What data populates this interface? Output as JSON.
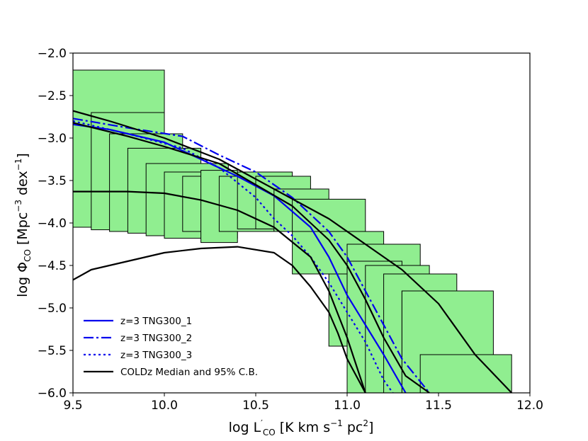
{
  "chart_data": {
    "type": "line",
    "xlabel": "log L'CO [K km s−1 pc2]",
    "ylabel": "log ΦCO [Mpc−3 dex−1]",
    "xlabel_parts": {
      "prefix": "log L",
      "prime": "′",
      "sub": "CO",
      "unit_a": " [K km s",
      "sup1": "−1",
      "unit_b": " pc",
      "sup2": "2",
      "close": "]"
    },
    "ylabel_parts": {
      "prefix": "log Φ",
      "sub": "CO",
      "unit_a": " [Mpc",
      "sup1": "−3",
      "unit_b": " dex",
      "sup2": "−1",
      "close": "]"
    },
    "xlim": [
      9.5,
      12.0
    ],
    "ylim": [
      -6.0,
      -2.0
    ],
    "xticks": [
      "9.5",
      "10.0",
      "10.5",
      "11.0",
      "11.5",
      "12.0"
    ],
    "xtick_values": [
      9.5,
      10.0,
      10.5,
      11.0,
      11.5,
      12.0
    ],
    "yticks": [
      "−2.0",
      "−2.5",
      "−3.0",
      "−3.5",
      "−4.0",
      "−4.5",
      "−5.0",
      "−5.5",
      "−6.0"
    ],
    "ytick_values": [
      -2.0,
      -2.5,
      -3.0,
      -3.5,
      -4.0,
      -4.5,
      -5.0,
      -5.5,
      -6.0
    ],
    "colors": {
      "box_fill": "#90ee90",
      "box_edge": "#000000",
      "sim": "#0000ee",
      "coldz": "#000000"
    },
    "error_boxes": [
      {
        "x0": 9.5,
        "x1": 10.0,
        "y0": -4.05,
        "y1": -2.2
      },
      {
        "x0": 9.6,
        "x1": 10.0,
        "y0": -4.08,
        "y1": -2.7
      },
      {
        "x0": 9.7,
        "x1": 10.1,
        "y0": -4.1,
        "y1": -2.95
      },
      {
        "x0": 9.8,
        "x1": 10.2,
        "y0": -4.12,
        "y1": -3.12
      },
      {
        "x0": 9.9,
        "x1": 10.35,
        "y0": -4.15,
        "y1": -3.3
      },
      {
        "x0": 10.0,
        "x1": 10.4,
        "y0": -4.18,
        "y1": -3.4
      },
      {
        "x0": 10.1,
        "x1": 10.5,
        "y0": -4.1,
        "y1": -3.45
      },
      {
        "x0": 10.2,
        "x1": 10.4,
        "y0": -4.23,
        "y1": -3.38
      },
      {
        "x0": 10.3,
        "x1": 10.6,
        "y0": -4.1,
        "y1": -3.45
      },
      {
        "x0": 10.4,
        "x1": 10.7,
        "y0": -4.07,
        "y1": -3.4
      },
      {
        "x0": 10.5,
        "x1": 10.8,
        "y0": -4.07,
        "y1": -3.45
      },
      {
        "x0": 10.6,
        "x1": 10.9,
        "y0": -4.1,
        "y1": -3.6
      },
      {
        "x0": 10.7,
        "x1": 11.1,
        "y0": -4.1,
        "y1": -3.72
      },
      {
        "x0": 10.9,
        "x1": 11.0,
        "y0": -5.45,
        "y1": -4.1
      },
      {
        "x0": 10.7,
        "x1": 11.2,
        "y0": -4.6,
        "y1": -4.1
      },
      {
        "x0": 11.0,
        "x1": 11.4,
        "y0": -6.0,
        "y1": -4.25
      },
      {
        "x0": 11.0,
        "x1": 11.3,
        "y0": -6.0,
        "y1": -4.45
      },
      {
        "x0": 11.1,
        "x1": 11.45,
        "y0": -6.0,
        "y1": -4.5
      },
      {
        "x0": 11.2,
        "x1": 11.6,
        "y0": -6.0,
        "y1": -4.6
      },
      {
        "x0": 11.3,
        "x1": 11.5,
        "y0": -6.0,
        "y1": -4.8
      },
      {
        "x0": 11.3,
        "x1": 11.8,
        "y0": -6.0,
        "y1": -4.8
      },
      {
        "x0": 11.4,
        "x1": 11.9,
        "y0": -6.0,
        "y1": -5.55
      }
    ],
    "series": [
      {
        "name": "z=3 TNG300_1",
        "style": "solid",
        "color": "#0000ee",
        "x": [
          9.5,
          9.7,
          10.0,
          10.2,
          10.4,
          10.6,
          10.8,
          10.9,
          11.0,
          11.1,
          11.2,
          11.32
        ],
        "y": [
          -2.84,
          -2.9,
          -3.05,
          -3.25,
          -3.45,
          -3.68,
          -4.05,
          -4.4,
          -4.85,
          -5.2,
          -5.55,
          -6.0
        ]
      },
      {
        "name": "z=3 TNG300_2",
        "style": "dashdot",
        "color": "#0000ee",
        "x": [
          9.5,
          9.8,
          10.1,
          10.3,
          10.5,
          10.7,
          10.9,
          11.0,
          11.1,
          11.2,
          11.3,
          11.45
        ],
        "y": [
          -2.77,
          -2.88,
          -2.98,
          -3.2,
          -3.4,
          -3.7,
          -4.1,
          -4.4,
          -4.8,
          -5.2,
          -5.6,
          -6.0
        ]
      },
      {
        "name": "z=3 TNG300_3",
        "style": "dotted",
        "color": "#0000ee",
        "x": [
          9.5,
          9.8,
          10.1,
          10.3,
          10.5,
          10.6,
          10.7,
          10.8,
          10.9,
          11.0,
          11.1,
          11.2,
          11.25
        ],
        "y": [
          -2.8,
          -2.95,
          -3.12,
          -3.35,
          -3.7,
          -3.95,
          -4.15,
          -4.4,
          -4.7,
          -5.05,
          -5.4,
          -5.85,
          -6.0
        ]
      },
      {
        "name": "COLDz Median and 95% C.B.",
        "style": "solid",
        "color": "#000000",
        "x": [
          9.5,
          9.8,
          10.0,
          10.3,
          10.5,
          10.7,
          10.8,
          10.9,
          11.0,
          11.1,
          11.2,
          11.32,
          11.45
        ],
        "y": [
          -2.82,
          -2.98,
          -3.1,
          -3.3,
          -3.55,
          -3.8,
          -4.0,
          -4.2,
          -4.5,
          -4.9,
          -5.35,
          -5.8,
          -6.0
        ]
      },
      {
        "name": "COLDz upper bound",
        "style": "solid",
        "color": "#000000",
        "legend": false,
        "x": [
          9.5,
          9.7,
          10.0,
          10.3,
          10.6,
          10.9,
          11.1,
          11.3,
          11.5,
          11.7,
          11.9
        ],
        "y": [
          -2.68,
          -2.8,
          -3.0,
          -3.25,
          -3.6,
          -3.95,
          -4.25,
          -4.55,
          -4.95,
          -5.55,
          -6.0
        ]
      },
      {
        "name": "COLDz lower bound",
        "style": "solid",
        "color": "#000000",
        "legend": false,
        "x": [
          9.5,
          9.8,
          10.0,
          10.2,
          10.4,
          10.6,
          10.8,
          10.9,
          11.0,
          11.1
        ],
        "y": [
          -3.63,
          -3.63,
          -3.65,
          -3.73,
          -3.85,
          -4.05,
          -4.4,
          -4.8,
          -5.35,
          -6.0
        ]
      },
      {
        "name": "COLDz lowest curve",
        "style": "solid",
        "color": "#000000",
        "legend": false,
        "x": [
          9.5,
          9.6,
          9.8,
          10.0,
          10.2,
          10.4,
          10.6,
          10.7,
          10.8,
          10.9,
          10.95,
          11.0,
          11.05,
          11.1
        ],
        "y": [
          -4.67,
          -4.55,
          -4.45,
          -4.35,
          -4.3,
          -4.28,
          -4.35,
          -4.5,
          -4.75,
          -5.05,
          -5.3,
          -5.6,
          -5.8,
          -6.0
        ]
      }
    ],
    "legend": {
      "location": "lower-left",
      "entries": [
        {
          "label": "z=3 TNG300_1",
          "style": "solid",
          "color": "#0000ee"
        },
        {
          "label": "z=3 TNG300_2",
          "style": "dashdot",
          "color": "#0000ee"
        },
        {
          "label": "z=3 TNG300_3",
          "style": "dotted",
          "color": "#0000ee"
        },
        {
          "label": "COLDz Median and 95% C.B.",
          "style": "solid",
          "color": "#000000"
        }
      ]
    }
  }
}
